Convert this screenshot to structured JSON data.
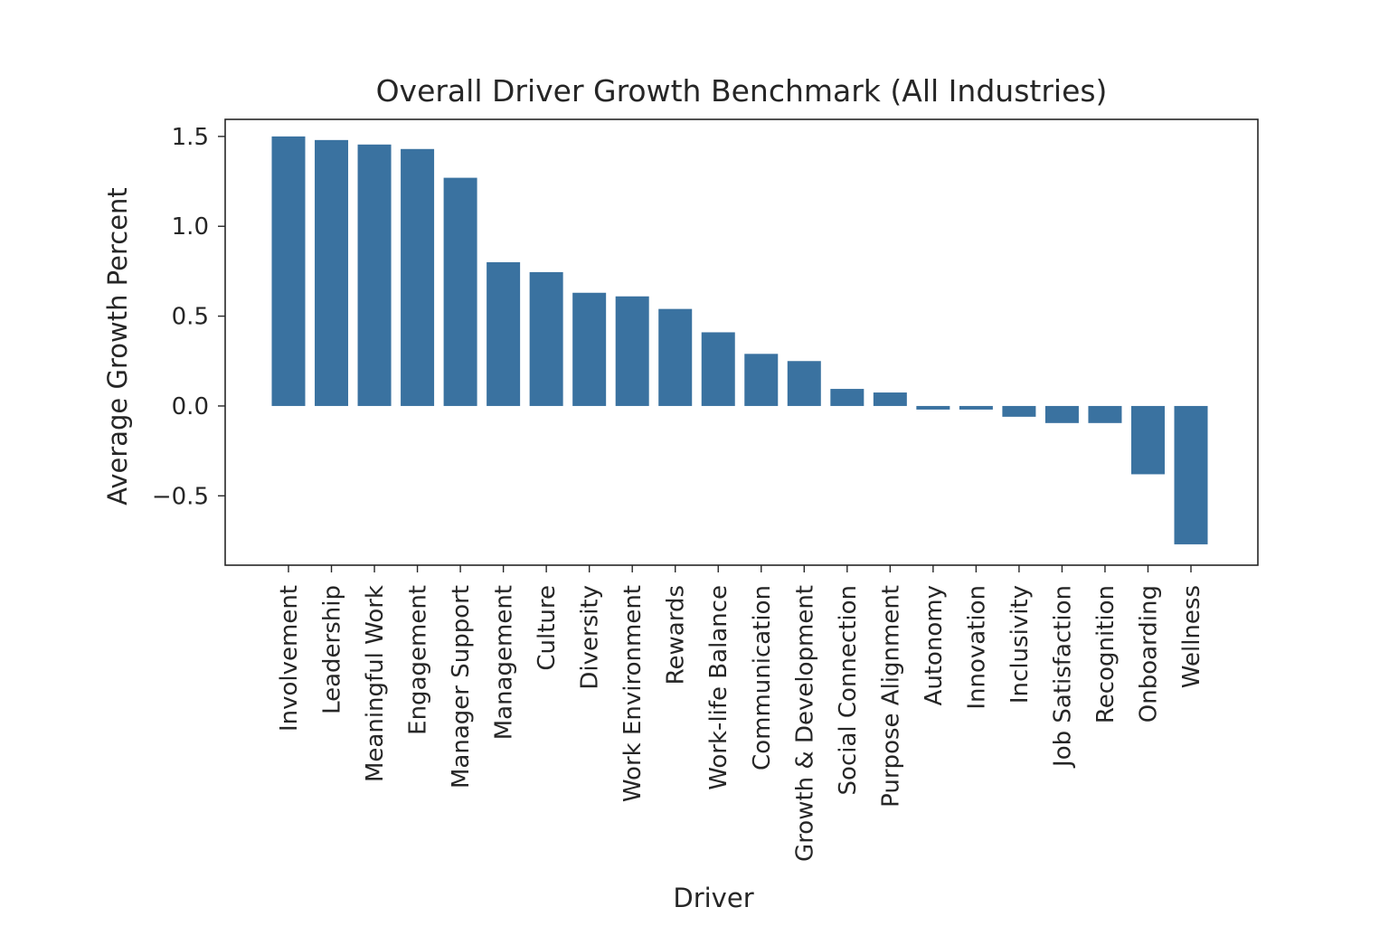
{
  "chart_data": {
    "type": "bar",
    "title": "Overall Driver Growth Benchmark (All Industries)",
    "xlabel": "Driver",
    "ylabel": "Average Growth Percent",
    "ylim": [
      -0.886,
      1.595
    ],
    "yticks": [
      -0.5,
      0.0,
      0.5,
      1.0,
      1.5
    ],
    "ytick_labels": [
      "−0.5",
      "0.0",
      "0.5",
      "1.0",
      "1.5"
    ],
    "grid": false,
    "bar_color": "#3a72a0",
    "categories": [
      "Involvement",
      "Leadership",
      "Meaningful Work",
      "Engagement",
      "Manager Support",
      "Management",
      "Culture",
      "Diversity",
      "Work Environment",
      "Rewards",
      "Work-life Balance",
      "Communication",
      "Growth & Development",
      "Social Connection",
      "Purpose Alignment",
      "Autonomy",
      "Innovation",
      "Inclusivity",
      "Job Satisfaction",
      "Recognition",
      "Onboarding",
      "Wellness"
    ],
    "values": [
      1.5,
      1.48,
      1.455,
      1.43,
      1.27,
      0.8,
      0.745,
      0.63,
      0.61,
      0.54,
      0.41,
      0.29,
      0.25,
      0.095,
      0.075,
      -0.02,
      -0.02,
      -0.06,
      -0.095,
      -0.095,
      -0.38,
      -0.77
    ]
  }
}
